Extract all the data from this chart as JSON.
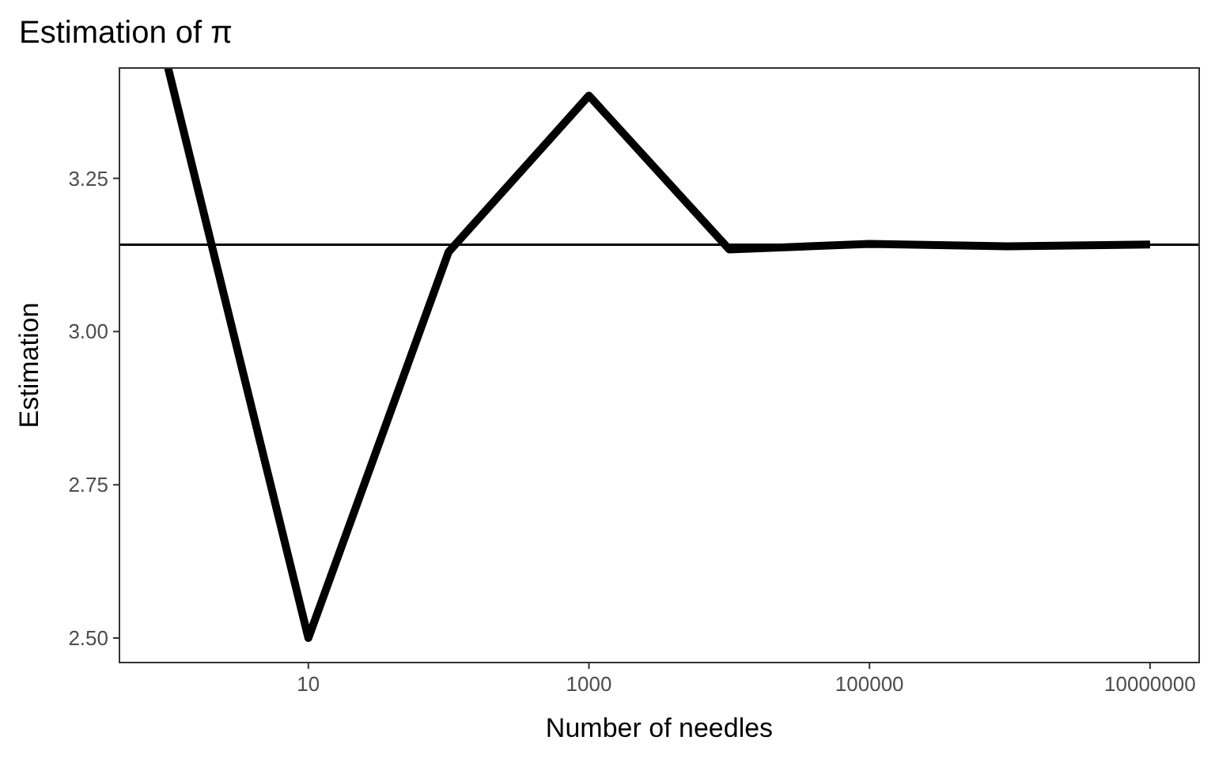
{
  "chart_data": {
    "type": "line",
    "title": "Estimation of π",
    "xlabel": "Number of needles",
    "ylabel": "Estimation",
    "x": [
      1,
      10,
      100,
      1000,
      10000,
      100000,
      1000000,
      10000000
    ],
    "series": [
      {
        "color": "#000000",
        "values": [
          3.43,
          2.5,
          3.13,
          3.385,
          3.134,
          3.143,
          3.139,
          3.142
        ]
      }
    ],
    "log": "x",
    "xlim": [
      0.45,
      22400000
    ],
    "xticks": [
      10,
      1000,
      100000,
      10000000
    ],
    "ylim": [
      2.46,
      3.43
    ],
    "yticks": [
      {
        "value": 2.5,
        "label": "2.50"
      },
      2.75,
      {
        "value": 3,
        "label": "3.00"
      },
      3.25
    ],
    "ref_lines": [
      {
        "axis": "y",
        "value": 3.1416,
        "color": "#000000"
      }
    ],
    "grid": false,
    "marker": "none",
    "line_style": "solid"
  }
}
